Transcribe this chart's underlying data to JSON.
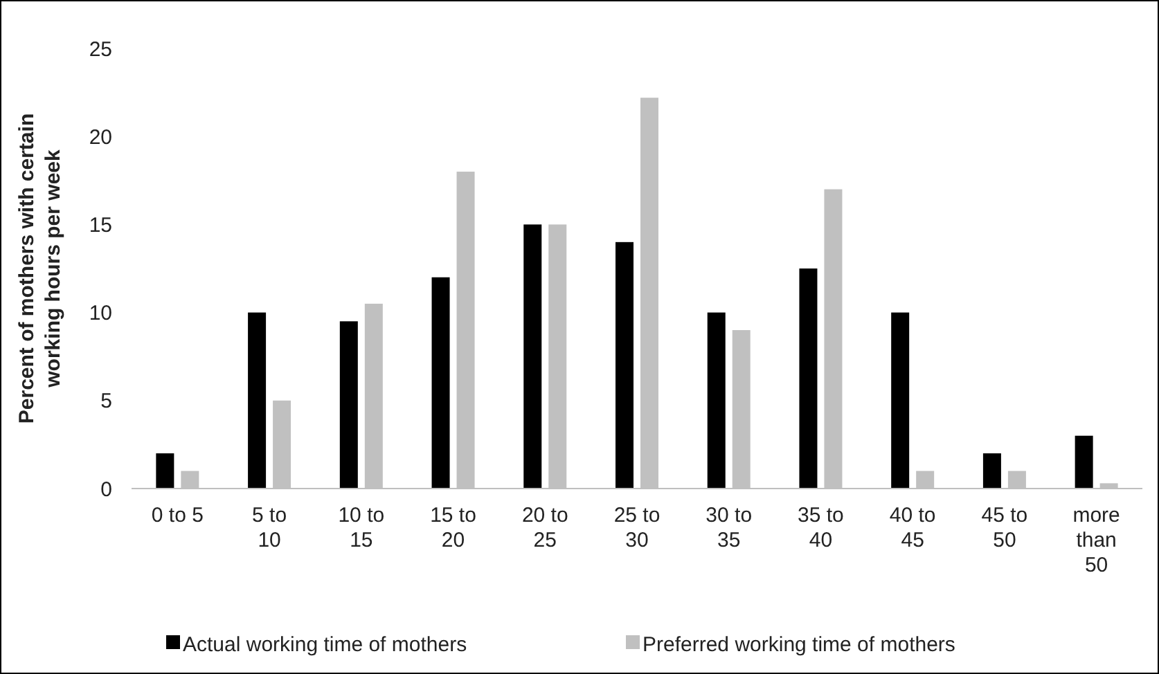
{
  "chart_data": {
    "type": "bar",
    "ylabel": "Percent of mothers with  certain working hours per week",
    "categories": [
      "0 to 5",
      "5 to 10",
      "10 to 15",
      "15 to 20",
      "20 to 25",
      "25 to 30",
      "30 to 35",
      "35 to 40",
      "40 to 45",
      "45 to 50",
      "more than 50"
    ],
    "series": [
      {
        "name": "Actual working time of mothers",
        "color": "#000000",
        "values": [
          2,
          10,
          9.5,
          12,
          15,
          14,
          10,
          12.5,
          10,
          2,
          3
        ]
      },
      {
        "name": "Preferred working time of mothers",
        "color": "#c0c0c0",
        "values": [
          1,
          5,
          10.5,
          18,
          15,
          22.2,
          9,
          17,
          1,
          1,
          0.3
        ]
      }
    ],
    "ylim": [
      0,
      25
    ],
    "yticks": [
      0,
      5,
      10,
      15,
      20,
      25
    ],
    "grid": false,
    "legend": "bottom"
  }
}
